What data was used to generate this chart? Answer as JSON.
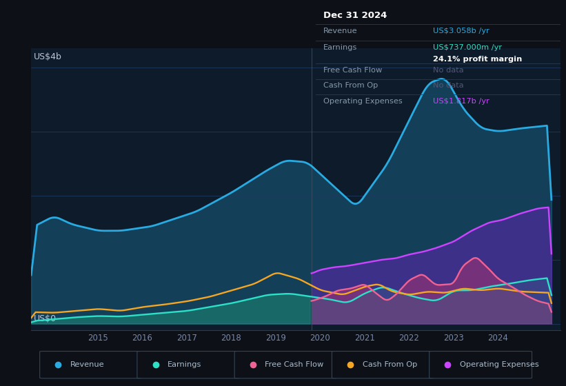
{
  "background_color": "#0d1117",
  "plot_bg_color": "#0d1b2a",
  "grid_color": "#1e3a5f",
  "title_label": "US$4b",
  "bottom_label": "US$0",
  "y_label_color": "#c0c8d8",
  "revenue_color": "#29abe2",
  "earnings_color": "#2de0c8",
  "fcf_color": "#f06292",
  "cashfromop_color": "#f5a623",
  "opex_color": "#cc44ff",
  "info_box": {
    "title": "Dec 31 2024",
    "revenue_label": "Revenue",
    "revenue_value": "US$3.058b /yr",
    "revenue_color": "#29abe2",
    "earnings_label": "Earnings",
    "earnings_value": "US$737.000m /yr",
    "earnings_color": "#2de0c8",
    "margin_value": "24.1% profit margin",
    "margin_color": "#ffffff",
    "fcf_label": "Free Cash Flow",
    "fcf_value": "No data",
    "cashfromop_label": "Cash From Op",
    "cashfromop_value": "No data",
    "opex_label": "Operating Expenses",
    "opex_value": "US$1.817b /yr",
    "opex_color": "#cc44ff",
    "nodata_color": "#555577"
  },
  "legend": [
    {
      "label": "Revenue",
      "color": "#29abe2"
    },
    {
      "label": "Earnings",
      "color": "#2de0c8"
    },
    {
      "label": "Free Cash Flow",
      "color": "#f06292"
    },
    {
      "label": "Cash From Op",
      "color": "#f5a623"
    },
    {
      "label": "Operating Expenses",
      "color": "#cc44ff"
    }
  ]
}
